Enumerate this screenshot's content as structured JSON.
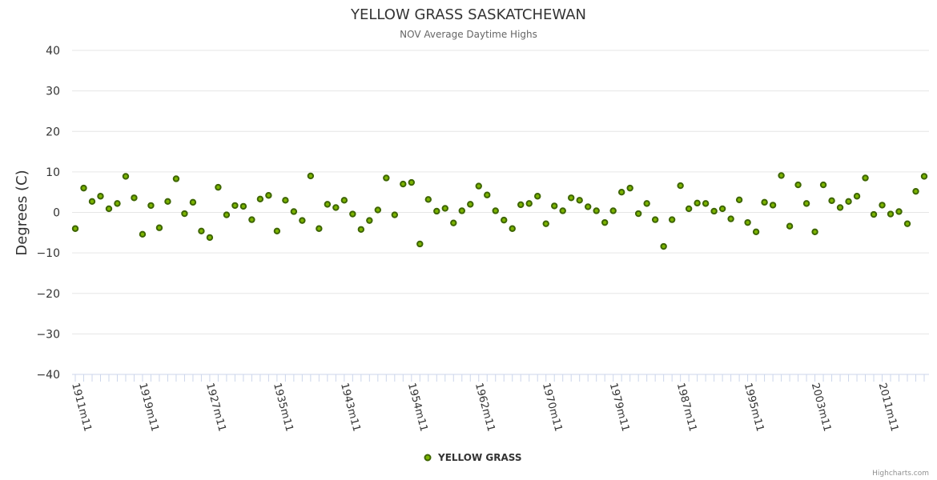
{
  "chart_data": {
    "type": "scatter",
    "title": "YELLOW GRASS SASKATCHEWAN",
    "subtitle": "NOV Average Daytime Highs",
    "ylabel": "Degrees (C)",
    "xlabel": "",
    "ylim": [
      -40,
      40
    ],
    "yticks": [
      40,
      30,
      20,
      10,
      0,
      -10,
      -20,
      -30,
      -40
    ],
    "x_tick_labels": [
      "1911m11",
      "1919m11",
      "1927m11",
      "1935m11",
      "1943m11",
      "1954m11",
      "1962m11",
      "1970m11",
      "1979m11",
      "1987m11",
      "1995m11",
      "2003m11",
      "2011m11"
    ],
    "x_tick_label_indices": [
      0,
      8,
      16,
      24,
      32,
      40,
      48,
      56,
      64,
      72,
      80,
      88,
      96
    ],
    "legend": "bottom-center",
    "series": [
      {
        "name": "YELLOW GRASS",
        "color": "#7cb400",
        "values": [
          -4,
          6,
          2.7,
          4,
          0.9,
          2.2,
          8.9,
          3.6,
          -5.4,
          1.7,
          -3.8,
          2.7,
          8.3,
          -0.3,
          2.5,
          -4.6,
          -6.2,
          6.2,
          -0.6,
          1.7,
          1.5,
          -1.8,
          3.3,
          4.2,
          -4.6,
          3,
          0.2,
          -2,
          9,
          -4,
          2,
          1.2,
          3,
          -0.4,
          -4.2,
          -2,
          0.6,
          8.5,
          -0.6,
          7,
          7.4,
          -7.8,
          3.2,
          0.3,
          1,
          -2.6,
          0.4,
          2,
          6.5,
          4.3,
          0.4,
          -1.9,
          -4,
          1.9,
          2.2,
          4,
          -2.8,
          1.6,
          0.4,
          3.6,
          3,
          1.4,
          0.4,
          -2.5,
          0.4,
          5,
          6,
          -0.3,
          2.2,
          -1.8,
          -8.4,
          -1.8,
          6.6,
          0.9,
          2.3,
          2.2,
          0.3,
          0.9,
          -1.6,
          3.1,
          -2.5,
          -4.8,
          2.5,
          1.8,
          9.1,
          -3.4,
          6.8,
          2.2,
          -4.8,
          6.8,
          2.9,
          1.2,
          2.7,
          4,
          8.5,
          -0.5,
          1.8,
          -0.4,
          0.2,
          -2.8,
          5.2,
          8.9
        ]
      }
    ]
  },
  "credits": "Highcharts.com"
}
